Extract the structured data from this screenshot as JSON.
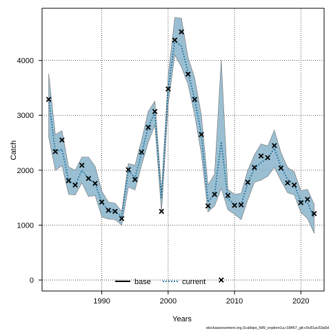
{
  "chart_data": {
    "type": "line",
    "xlabel": "Years",
    "ylabel": "Catch",
    "xlim": [
      1981,
      2023.5
    ],
    "ylim": [
      -200,
      4950
    ],
    "x_ticks": [
      1990,
      2000,
      2010,
      2020
    ],
    "y_ticks": [
      0,
      1000,
      2000,
      3000,
      4000
    ],
    "grid": true,
    "legend_position": "bottom-center",
    "series": [
      {
        "name": "base",
        "style": "solid",
        "color": "#000000",
        "x": [],
        "y": []
      },
      {
        "name": "current",
        "style": "dotted",
        "color": "#1a6f9c",
        "band_color": "#8ab4ca",
        "x": [
          1982,
          1983,
          1984,
          1985,
          1986,
          1987,
          1988,
          1989,
          1990,
          1991,
          1992,
          1993,
          1994,
          1995,
          1996,
          1997,
          1998,
          1999,
          2000,
          2001,
          2002,
          2003,
          2004,
          2005,
          2006,
          2007,
          2008,
          2009,
          2010,
          2011,
          2012,
          2013,
          2014,
          2015,
          2016,
          2017,
          2018,
          2019,
          2020,
          2021,
          2022
        ],
        "y": [
          3290,
          2340,
          2380,
          1810,
          1730,
          2000,
          1850,
          1760,
          1410,
          1270,
          1240,
          1160,
          1990,
          1860,
          2310,
          2790,
          3050,
          1480,
          3460,
          4360,
          4260,
          3780,
          3290,
          2660,
          1420,
          1560,
          2520,
          1480,
          1380,
          1370,
          1770,
          2030,
          2140,
          2220,
          2400,
          2070,
          1830,
          1740,
          1430,
          1410,
          1130
        ],
        "lower": [
          2600,
          2000,
          2080,
          1560,
          1550,
          1770,
          1520,
          1540,
          1150,
          1110,
          1100,
          1000,
          1690,
          1640,
          2090,
          2510,
          2820,
          1240,
          3200,
          4100,
          3880,
          3560,
          3000,
          2300,
          1240,
          1350,
          1670,
          1280,
          1200,
          1100,
          1460,
          1780,
          1820,
          1890,
          2050,
          1810,
          1590,
          1550,
          1230,
          1120,
          850
        ],
        "upper": [
          3760,
          2650,
          2720,
          2060,
          2000,
          2240,
          2240,
          2070,
          1620,
          1420,
          1400,
          1250,
          2120,
          2090,
          2550,
          3070,
          3260,
          1610,
          3720,
          4780,
          4770,
          4050,
          3680,
          3010,
          1730,
          1930,
          4010,
          1650,
          1560,
          1580,
          2000,
          2280,
          2480,
          2440,
          2730,
          2320,
          2050,
          1970,
          1630,
          1650,
          1380
        ]
      }
    ],
    "observed": {
      "marker": "x",
      "x": [
        1982,
        1983,
        1984,
        1985,
        1986,
        1987,
        1988,
        1989,
        1990,
        1991,
        1992,
        1993,
        1994,
        1995,
        1996,
        1997,
        1998,
        1999,
        2000,
        2001,
        2002,
        2003,
        2004,
        2005,
        2006,
        2007,
        2008,
        2009,
        2010,
        2011,
        2012,
        2013,
        2014,
        2015,
        2016,
        2017,
        2018,
        2019,
        2020,
        2021,
        2022
      ],
      "y": [
        3290,
        2340,
        2550,
        1810,
        1730,
        2090,
        1850,
        1760,
        1420,
        1270,
        1250,
        1120,
        2010,
        1830,
        2330,
        2780,
        3070,
        1250,
        3480,
        4370,
        4520,
        3750,
        3290,
        2650,
        1350,
        1560,
        0,
        1540,
        1360,
        1370,
        1780,
        2050,
        2260,
        2230,
        2450,
        2040,
        1770,
        1730,
        1410,
        1470,
        1210
      ]
    }
  },
  "legend": {
    "base_label": "base",
    "current_label": "current"
  },
  "footnote": "stockassessment.org,Scallops_NW_explore1a,r18467_git:c9c81ac53a0d"
}
